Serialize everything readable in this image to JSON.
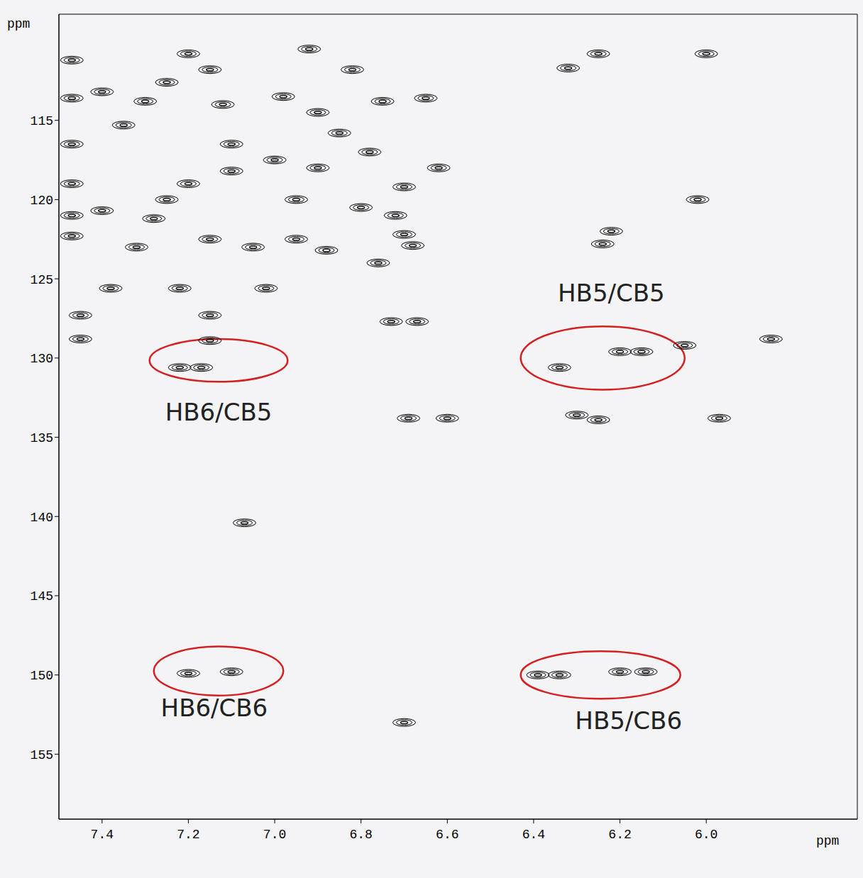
{
  "chart_data": {
    "type": "scatter",
    "x_label": "ppm",
    "y_label": "ppm",
    "xlim": [
      7.5,
      5.65
    ],
    "ylim": [
      159.1,
      108.3
    ],
    "xticks": [
      7.4,
      7.2,
      {
        "value": 7,
        "label": "7.0"
      },
      6.8,
      6.6,
      6.4,
      6.2,
      {
        "value": 6,
        "label": "6.0"
      }
    ],
    "yticks": [
      115,
      120,
      125,
      130,
      135,
      140,
      145,
      150,
      155
    ],
    "color": "#000000",
    "marker": "contour",
    "grid": false,
    "x": [
      7.47,
      7.47,
      7.47,
      7.47,
      7.47,
      7.47,
      7.4,
      7.35,
      7.3,
      7.25,
      7.28,
      7.25,
      7.2,
      7.2,
      7.15,
      7.12,
      7.1,
      7.1,
      7.15,
      7.05,
      7.0,
      6.98,
      6.95,
      6.95,
      6.92,
      6.9,
      6.9,
      6.88,
      6.85,
      6.82,
      6.8,
      6.78,
      6.75,
      6.72,
      6.7,
      6.68,
      6.65,
      6.62,
      6.7,
      6.76,
      7.32,
      7.4,
      7.38,
      7.22,
      7.02,
      7.15,
      7.15,
      7.45,
      7.45,
      7.22,
      7.17,
      6.34,
      6.2,
      6.15,
      7.2,
      7.1,
      6.39,
      6.34,
      6.2,
      6.14,
      6.7,
      6.73,
      6.67,
      6.69,
      6.6,
      6.25,
      6.3,
      6.25,
      6.32,
      6.0,
      6.22,
      6.24,
      6.02,
      6.05,
      5.97,
      7.07,
      5.85
    ],
    "y": [
      111.2,
      113.6,
      116.5,
      119.0,
      121.0,
      122.3,
      113.2,
      115.3,
      113.8,
      112.6,
      121.2,
      120.0,
      119.0,
      110.8,
      111.8,
      114.0,
      116.5,
      118.2,
      122.5,
      123.0,
      117.5,
      113.5,
      120.0,
      122.5,
      110.5,
      114.5,
      118.0,
      123.2,
      115.8,
      111.8,
      120.5,
      117.0,
      113.8,
      121.0,
      122.2,
      122.9,
      113.6,
      118.0,
      119.2,
      124.0,
      123.0,
      120.7,
      125.6,
      125.6,
      125.6,
      127.3,
      128.9,
      127.3,
      128.8,
      130.6,
      130.6,
      130.6,
      129.6,
      129.6,
      149.9,
      149.8,
      150.0,
      150.0,
      149.8,
      149.8,
      153.0,
      127.7,
      127.7,
      133.8,
      133.8,
      133.9,
      133.6,
      110.8,
      111.7,
      110.8,
      122.0,
      122.8,
      120.0,
      129.2,
      133.8,
      140.4,
      128.8
    ],
    "annotations": [
      {
        "text": "HB5/CB5",
        "x": 6.22,
        "y": 126.0,
        "color": "#d42020",
        "region": {
          "x": [
            6.43,
            6.05
          ],
          "y": [
            128.0,
            132.0
          ]
        }
      },
      {
        "text": "HB6/CB5",
        "x": 7.13,
        "y": 133.5,
        "color": "#d42020",
        "region": {
          "x": [
            7.29,
            6.97
          ],
          "y": [
            128.8,
            131.5
          ]
        }
      },
      {
        "text": "HB6/CB6",
        "x": 7.14,
        "y": 152.2,
        "color": "#d42020",
        "region": {
          "x": [
            7.28,
            6.98
          ],
          "y": [
            148.2,
            151.3
          ]
        }
      },
      {
        "text": "HB5/CB6",
        "x": 6.18,
        "y": 153.0,
        "color": "#d42020",
        "region": {
          "x": [
            6.43,
            6.06
          ],
          "y": [
            148.5,
            151.5
          ]
        }
      }
    ]
  }
}
